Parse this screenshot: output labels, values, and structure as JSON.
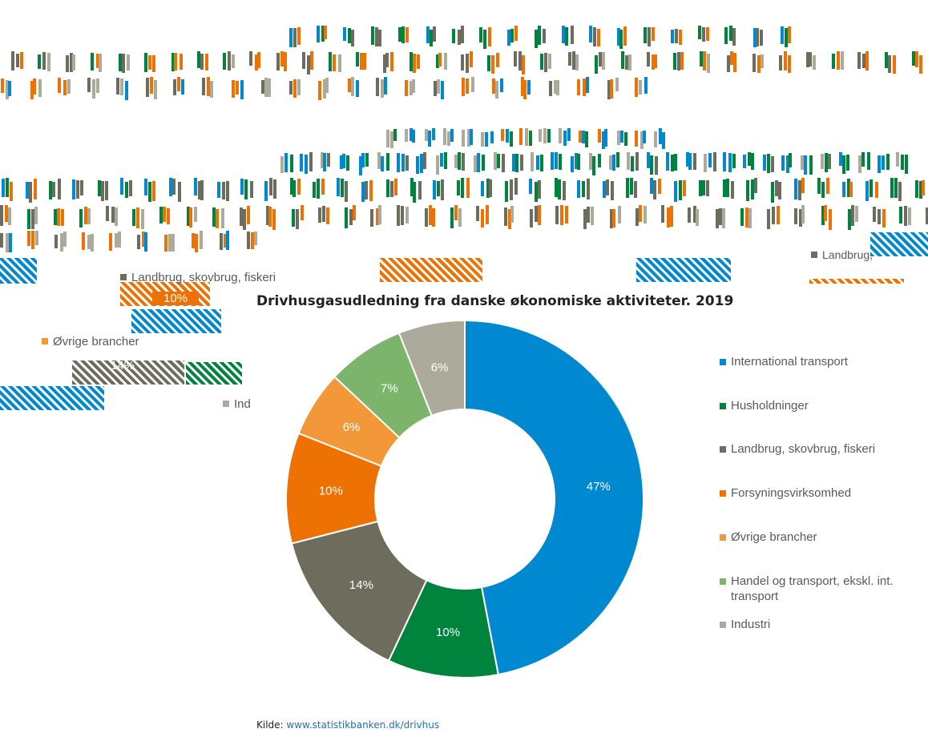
{
  "chart_data": {
    "type": "pie",
    "title": "Drivhusgasudledning fra danske økonomiske aktiviteter. 2019",
    "slices": [
      {
        "name": "International transport",
        "value": 47,
        "label": "47%",
        "color": "#0089d0"
      },
      {
        "name": "Husholdninger",
        "value": 10,
        "label": "10%",
        "color": "#00843d"
      },
      {
        "name": "Landbrug, skovbrug, fiskeri",
        "value": 14,
        "label": "14%",
        "color": "#6e6d5d"
      },
      {
        "name": "Forsyningsvirksomhed",
        "value": 10,
        "label": "10%",
        "color": "#ee7203"
      },
      {
        "name": "Øvrige brancher",
        "value": 6,
        "label": "6%",
        "color": "#f39838"
      },
      {
        "name": "Handel og transport, ekskl. int. transport",
        "value": 7,
        "label": "7%",
        "color": "#7cb46b"
      },
      {
        "name": "Industri",
        "value": 6,
        "label": "6%",
        "color": "#acaa9a"
      }
    ],
    "hole": "donut",
    "legend_position": "right"
  },
  "source": {
    "prefix": "Kilde:",
    "link_text": "www.statistikbanken.dk/drivhus"
  },
  "artifacts": {
    "text_1": "Landbrug, skovbrug, fiskeri",
    "text_2": "10%",
    "text_3": "Øvrige brancher",
    "text_4": "14%",
    "text_5": "Ind",
    "text_6": "Landbrug,"
  }
}
